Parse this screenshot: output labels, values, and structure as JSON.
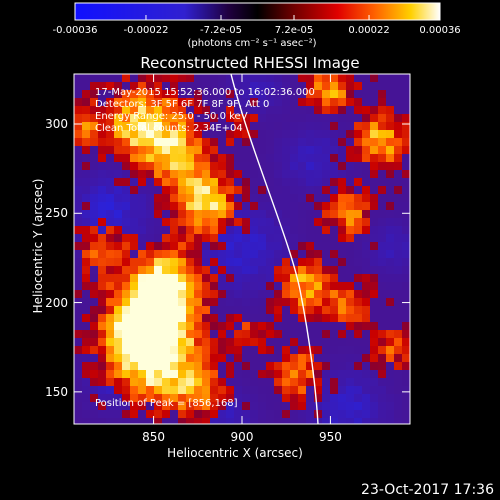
{
  "colorbar": {
    "ticks": [
      "-0.00036",
      "-0.00022",
      "-7.2e-05",
      "7.2e-05",
      "0.00022",
      "0.00036"
    ],
    "tick_values": [
      -0.00036,
      -0.00022,
      -7.2e-05,
      7.2e-05,
      0.00022,
      0.00036
    ],
    "range": [
      -0.00036,
      0.00036
    ],
    "units": "(photons cm⁻² s⁻¹ asec⁻²)"
  },
  "plot": {
    "title": "Reconstructed RHESSI Image",
    "xlabel": "Heliocentric X (arcsec)",
    "ylabel": "Heliocentric Y (arcsec)",
    "xticks": [
      "850",
      "900",
      "950"
    ],
    "xtick_values": [
      850,
      900,
      950
    ],
    "yticks": [
      "150",
      "200",
      "250",
      "300"
    ],
    "ytick_values": [
      150,
      200,
      250,
      300
    ],
    "xlim": [
      805,
      995
    ],
    "ylim": [
      132,
      328
    ]
  },
  "annotations": {
    "time_range": "17-May-2015 15:52:36.000 to 16:02:36.000",
    "detectors": "Detectors: 3F 5F 6F 7F 8F 9F, Att 0",
    "energy_range": "Energy Range: 25.0 - 50.0 keV",
    "clean": "Clean    Total counts: 2.34E+04",
    "peak": "Position of Peak = [856,168]"
  },
  "footer": {
    "date": "23-Oct-2017 17:36"
  },
  "colors": {
    "negative_end": "#0010ff",
    "zero": "#000000",
    "positive_mid": "#ff2000",
    "positive_end": "#ffffff"
  }
}
